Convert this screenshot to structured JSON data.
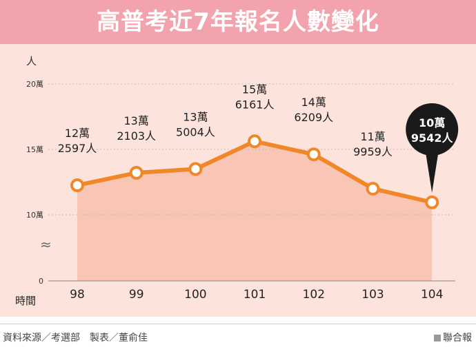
{
  "header": {
    "title": "高普考近7年報名人數變化"
  },
  "footer": {
    "source": "資料來源／考選部　製表／董俞佳",
    "publisher": "聯合報"
  },
  "colors": {
    "banner": "#f3a3ad",
    "background": "#fce4dc",
    "area": "#f8c0ad",
    "line": "#f0882a",
    "callout": "#1a1a1a"
  },
  "chart_data": {
    "type": "line",
    "title": "高普考近7年報名人數變化",
    "xlabel": "時間",
    "ylabel": "人",
    "categories": [
      "98",
      "99",
      "100",
      "101",
      "102",
      "103",
      "104"
    ],
    "values": [
      122597,
      132103,
      135004,
      156161,
      146209,
      119959,
      109542
    ],
    "point_labels": [
      [
        "12萬",
        "2597人"
      ],
      [
        "13萬",
        "2103人"
      ],
      [
        "13萬",
        "5004人"
      ],
      [
        "15萬",
        "6161人"
      ],
      [
        "14萬",
        "6209人"
      ],
      [
        "11萬",
        "9959人"
      ],
      [
        "10萬",
        "9542人"
      ]
    ],
    "highlight_index": 6,
    "yticks": [
      {
        "value": 0,
        "label": "0"
      },
      {
        "value": 100000,
        "label": "10萬"
      },
      {
        "value": 150000,
        "label": "15萬"
      },
      {
        "value": 200000,
        "label": "20萬"
      }
    ],
    "axis_break_symbol": "≈",
    "ylim": [
      0,
      200000
    ],
    "grid": true,
    "area_fill": true
  }
}
